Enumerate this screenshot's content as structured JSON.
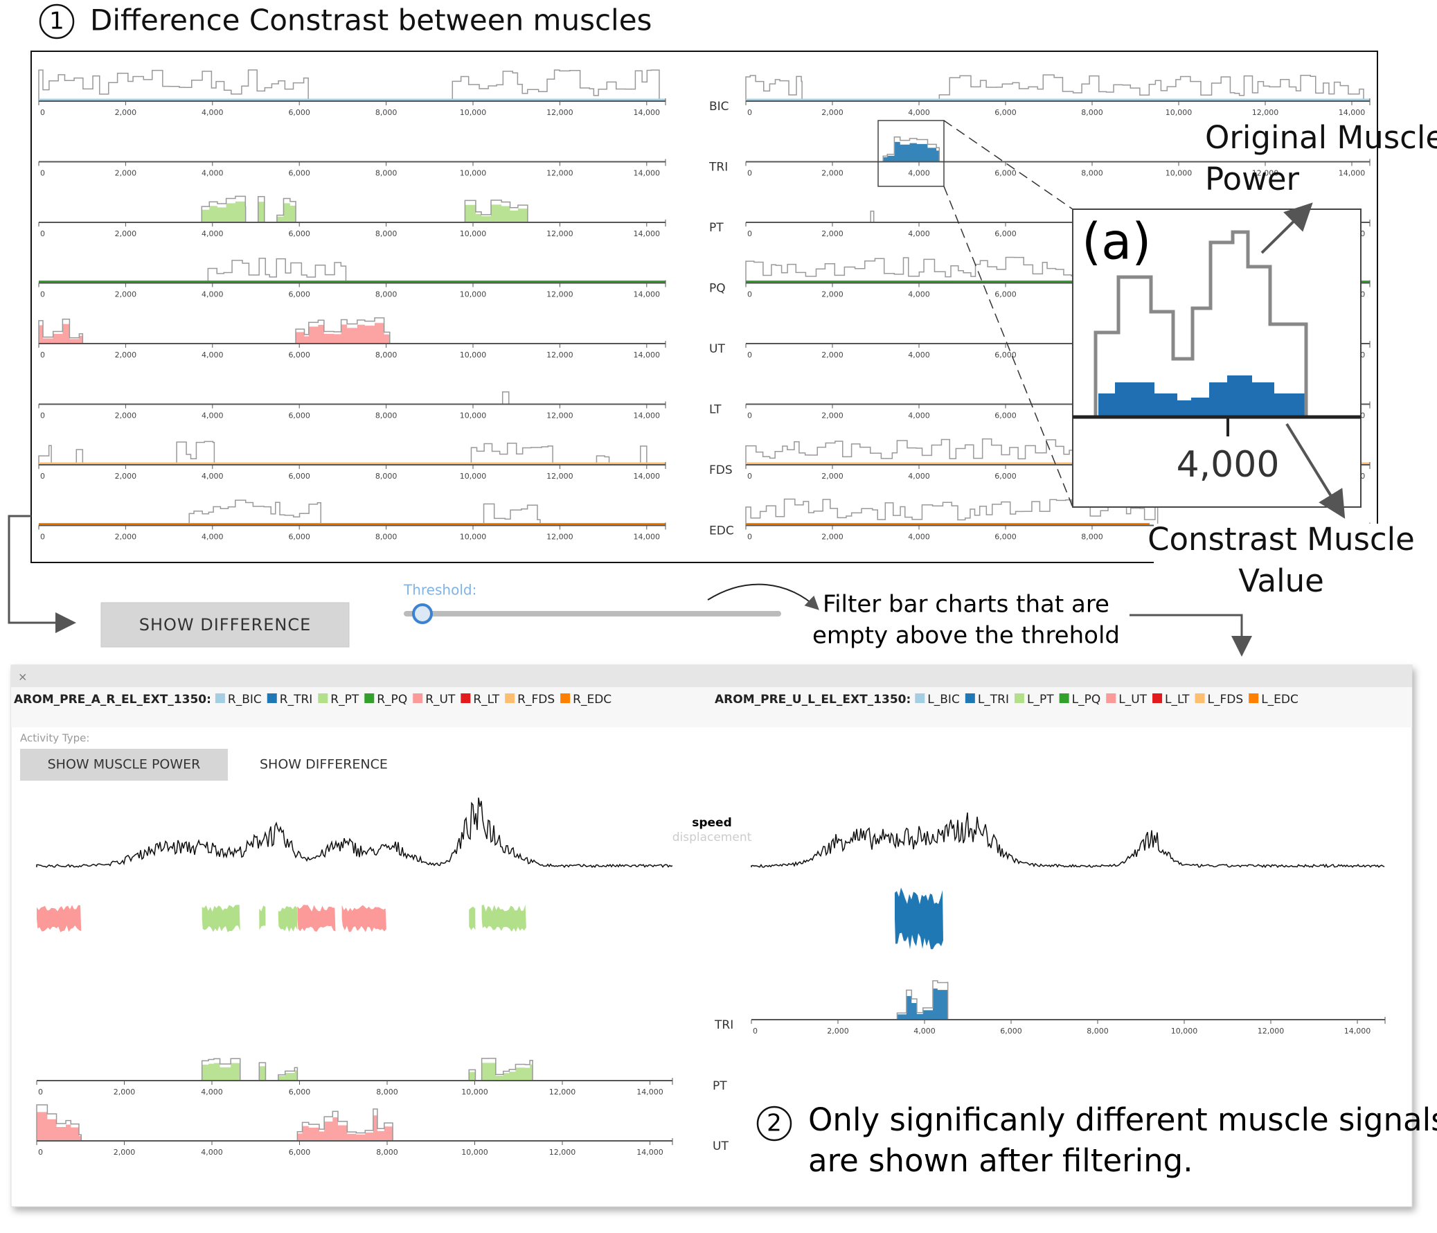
{
  "title_number": "1",
  "title": "Difference Constrast between muscles",
  "muscles": [
    "BIC",
    "TRI",
    "PT",
    "PQ",
    "UT",
    "LT",
    "FDS",
    "EDC"
  ],
  "axis_ticks": [
    "0",
    "2,000",
    "4,000",
    "6,000",
    "8,000",
    "10,000",
    "12,000",
    "14,000"
  ],
  "inset_label": "(a)",
  "annotations": {
    "original": [
      "Original Muscle",
      "Power"
    ],
    "contrast": [
      "Constrast Muscle",
      "Value"
    ],
    "filter": [
      "Filter bar charts that are",
      "empty above the threhold"
    ],
    "note_number": "2",
    "note": [
      "Only significanly different muscle signals",
      "are shown after filtering."
    ]
  },
  "controls": {
    "show_difference": "SHOW DIFFERENCE",
    "threshold": "Threshold:"
  },
  "window": {
    "close": "×",
    "left_file": "AROM_PRE_A_R_EL_EXT_1350:",
    "right_file": "AROM_PRE_U_L_EL_EXT_1350:",
    "left_legend": [
      "R_BIC",
      "R_TRI",
      "R_PT",
      "R_PQ",
      "R_UT",
      "R_LT",
      "R_FDS",
      "R_EDC"
    ],
    "right_legend": [
      "L_BIC",
      "L_TRI",
      "L_PT",
      "L_PQ",
      "L_UT",
      "L_LT",
      "L_FDS",
      "L_EDC"
    ],
    "legend_colors": [
      "#a6cee3",
      "#1f78b4",
      "#b2df8a",
      "#33a02c",
      "#fb9a99",
      "#e31a1c",
      "#fdbf6f",
      "#ff7f00"
    ],
    "activity_label": "Activity Type:",
    "buttons": [
      "SHOW MUSCLE POWER",
      "SHOW DIFFERENCE"
    ],
    "metrics": [
      "speed",
      "displacement"
    ]
  }
}
